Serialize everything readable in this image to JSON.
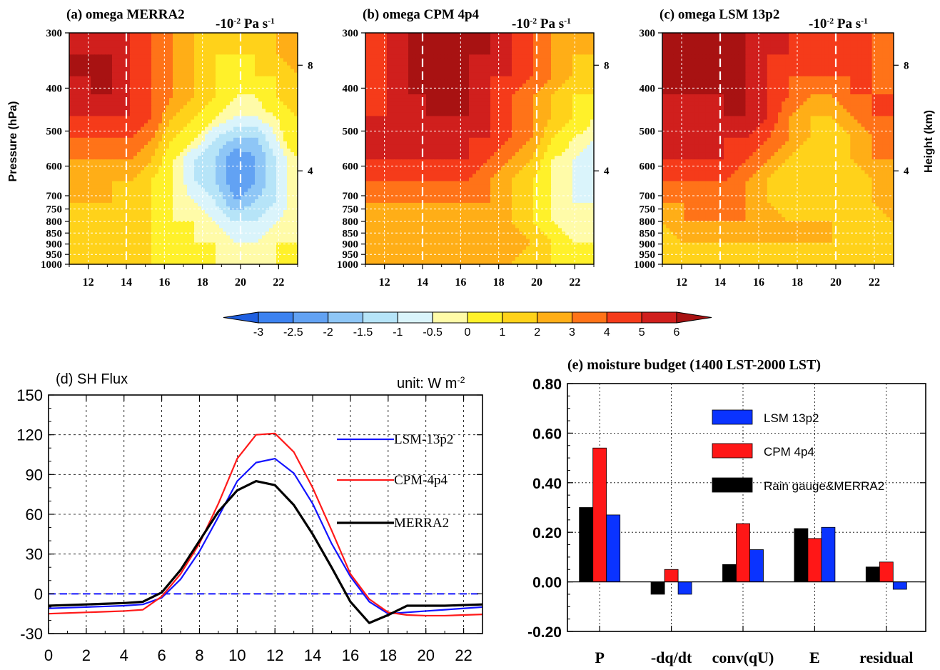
{
  "colors": {
    "contour_levels": [
      -3,
      -2.5,
      -2,
      -1.5,
      -1,
      -0.5,
      0,
      1,
      2,
      3,
      4,
      5,
      6
    ],
    "contour_palette": [
      "#1f5fe0",
      "#3c82f0",
      "#62a2f3",
      "#8ec6f6",
      "#b6e4f8",
      "#daf4fb",
      "#fffba8",
      "#fff12a",
      "#ffd21a",
      "#ffae17",
      "#ff7318",
      "#f53b1a",
      "#d01f1d",
      "#a81212"
    ],
    "line_blue": "#1414ff",
    "line_red": "#ff1a1a",
    "line_black": "#000000",
    "bar_blue": "#0a33ff",
    "bar_red": "#ff1717",
    "bar_black": "#000000"
  },
  "contour_panels": [
    {
      "id": "a",
      "title": "(a) omega   MERRA2",
      "unit_text": "-10",
      "unit_exp": "-2",
      "unit_rest": " Pa s",
      "unit_rest_exp": "-1",
      "show_left_axis": true,
      "show_right_axis": false,
      "field": [
        [
          5,
          5,
          5,
          5,
          4,
          3,
          2,
          1,
          1,
          1,
          2,
          3
        ],
        [
          6,
          6,
          6,
          5,
          4,
          3,
          2,
          1,
          1,
          1,
          2,
          3
        ],
        [
          6,
          6,
          6,
          5,
          4,
          3,
          2,
          1,
          0,
          1,
          1,
          2
        ],
        [
          5,
          6,
          6,
          5,
          4,
          3,
          2,
          1,
          0,
          0,
          1,
          2
        ],
        [
          5,
          5,
          5,
          5,
          4,
          2,
          1,
          0,
          -0.5,
          -0.5,
          0,
          1
        ],
        [
          4,
          4,
          4,
          4,
          3,
          1,
          0,
          -1,
          -1.5,
          -1.5,
          -0.5,
          1
        ],
        [
          3,
          3,
          3,
          3,
          2,
          0,
          -1,
          -1.5,
          -2.5,
          -2,
          -1,
          0
        ],
        [
          2,
          2,
          2,
          2,
          1,
          0,
          -1,
          -1.5,
          -2.5,
          -2,
          -1,
          0
        ],
        [
          2,
          2,
          2,
          1,
          1,
          0,
          -0.5,
          -1,
          -2,
          -1.5,
          -1,
          0
        ],
        [
          1,
          1,
          1,
          1,
          1,
          0,
          0,
          -0.5,
          -1,
          -1,
          -0.5,
          0
        ],
        [
          1,
          1,
          1,
          1,
          1,
          0,
          0,
          0,
          -0.5,
          -0.5,
          0,
          0
        ],
        [
          1,
          1,
          1,
          1,
          1,
          1,
          1,
          0,
          0,
          0,
          0,
          0
        ]
      ]
    },
    {
      "id": "b",
      "title": "(b)  omega   CPM 4p4",
      "unit_text": "-10",
      "unit_exp": "-2",
      "unit_rest": " Pa s",
      "unit_rest_exp": "-1",
      "show_left_axis": true,
      "show_right_axis": false,
      "field": [
        [
          4,
          5,
          6,
          6,
          6,
          6,
          6,
          5,
          4,
          3,
          3,
          2
        ],
        [
          4,
          5,
          6,
          6,
          6,
          6,
          6,
          5,
          4,
          3,
          2,
          2
        ],
        [
          4,
          5,
          6,
          6,
          6,
          6,
          5,
          5,
          4,
          3,
          2,
          1
        ],
        [
          4,
          5,
          6,
          6,
          6,
          6,
          5,
          4,
          3,
          2,
          1,
          1
        ],
        [
          5,
          5,
          5,
          6,
          6,
          6,
          5,
          4,
          3,
          2,
          1,
          0
        ],
        [
          5,
          5,
          5,
          5,
          5,
          5,
          5,
          4,
          3,
          1,
          0,
          -0.5
        ],
        [
          5,
          5,
          5,
          5,
          5,
          5,
          4,
          3,
          2,
          0,
          -0.5,
          -1
        ],
        [
          4,
          4,
          4,
          4,
          4,
          4,
          3,
          2,
          1,
          0,
          -0.5,
          -1
        ],
        [
          3,
          3,
          3,
          3,
          3,
          3,
          3,
          2,
          1,
          0,
          -0.5,
          -0.5
        ],
        [
          2,
          2,
          2,
          2,
          2,
          2,
          2,
          2,
          1,
          0,
          -0.5,
          -0.5
        ],
        [
          3,
          3,
          3,
          3,
          3,
          3,
          3,
          3,
          2,
          1,
          0,
          0
        ],
        [
          2,
          2,
          2,
          2,
          2,
          2,
          2,
          2,
          1,
          1,
          0,
          0
        ]
      ]
    },
    {
      "id": "c",
      "title": "(c) omega   LSM 13p2",
      "unit_text": "-10",
      "unit_exp": "-2",
      "unit_rest": " Pa s",
      "unit_rest_exp": "-1",
      "show_left_axis": true,
      "show_right_axis": true,
      "field": [
        [
          6,
          6,
          6,
          6,
          6,
          5,
          5,
          4,
          4,
          4,
          4,
          3
        ],
        [
          6,
          6,
          6,
          6,
          6,
          5,
          5,
          4,
          4,
          4,
          4,
          3
        ],
        [
          6,
          6,
          6,
          6,
          6,
          5,
          4,
          4,
          4,
          4,
          4,
          3
        ],
        [
          6,
          6,
          6,
          6,
          6,
          5,
          4,
          3,
          3,
          4,
          4,
          4
        ],
        [
          5,
          5,
          5,
          6,
          6,
          5,
          3,
          2,
          2,
          3,
          4,
          4
        ],
        [
          5,
          5,
          5,
          5,
          5,
          4,
          3,
          2,
          1,
          2,
          3,
          4
        ],
        [
          5,
          5,
          5,
          5,
          4,
          3,
          2,
          1,
          1,
          2,
          3,
          3
        ],
        [
          4,
          4,
          4,
          4,
          3,
          2,
          1,
          1,
          1,
          1,
          2,
          3
        ],
        [
          3,
          3,
          3,
          3,
          3,
          2,
          1,
          1,
          1,
          1,
          2,
          3
        ],
        [
          2,
          3,
          3,
          3,
          3,
          3,
          2,
          2,
          2,
          1,
          1,
          2
        ],
        [
          1,
          2,
          2,
          2,
          2,
          2,
          2,
          2,
          2,
          1,
          1,
          1
        ],
        [
          1,
          1,
          1,
          1,
          1,
          1,
          1,
          1,
          1,
          1,
          1,
          1
        ]
      ]
    }
  ],
  "contour_axes": {
    "x_ticks": [
      "12",
      "14",
      "16",
      "18",
      "20",
      "22"
    ],
    "x_tick_values": [
      12,
      14,
      16,
      18,
      20,
      22
    ],
    "x_range": [
      11,
      23
    ],
    "y_ticks": [
      "300",
      "400",
      "500",
      "600",
      "700",
      "750",
      "800",
      "850",
      "900",
      "950",
      "1000"
    ],
    "y_tick_values": [
      300,
      400,
      500,
      600,
      700,
      750,
      800,
      850,
      900,
      950,
      1000
    ],
    "y_range": [
      300,
      1000
    ],
    "y_scale": "log",
    "ylabel": "Pressure (hPa)",
    "right_ticks": [
      "8",
      "4"
    ],
    "right_tick_pressures": [
      355,
      615
    ],
    "right_label": "Height (km)",
    "dashed_vertical_at": [
      14,
      20
    ]
  },
  "colorbar": {
    "labels": [
      "-3",
      "-2.5",
      "-2",
      "-1.5",
      "-1",
      "-0.5",
      "0",
      "1",
      "2",
      "3",
      "4",
      "5",
      "6"
    ]
  },
  "chart_data": [
    {
      "type": "line",
      "title": "(d) SH Flux",
      "unit_label": "unit: W m",
      "unit_exp": "-2",
      "xlabel": "",
      "ylabel": "",
      "x": [
        0,
        1,
        2,
        3,
        4,
        5,
        6,
        7,
        8,
        9,
        10,
        11,
        12,
        13,
        14,
        15,
        16,
        17,
        18,
        19,
        20,
        21,
        22,
        23
      ],
      "xlim": [
        0,
        23
      ],
      "ylim": [
        -30,
        150
      ],
      "x_ticks": [
        "0",
        "2",
        "4",
        "6",
        "8",
        "10",
        "12",
        "14",
        "16",
        "18",
        "20",
        "22"
      ],
      "y_ticks": [
        "-30",
        "0",
        "30",
        "60",
        "90",
        "120",
        "150"
      ],
      "grid": true,
      "legend": "right",
      "zero_line": 0,
      "series": [
        {
          "name": "LSM-13p2",
          "values": [
            -11,
            -10.5,
            -10,
            -9.5,
            -9,
            -8,
            -3,
            11,
            32,
            58,
            85,
            99,
            102,
            91,
            68,
            38,
            13,
            -6,
            -15,
            -14,
            -13,
            -12,
            -11,
            -10
          ]
        },
        {
          "name": "CPM-4p4",
          "values": [
            -15,
            -14.5,
            -14,
            -13.5,
            -13,
            -12,
            -2,
            15,
            38,
            68,
            102,
            120,
            121,
            107,
            80,
            48,
            15,
            -4,
            -14,
            -16,
            -16.5,
            -16.5,
            -16,
            -15.5
          ]
        },
        {
          "name": "MERRA2",
          "values": [
            -9,
            -8.5,
            -8,
            -7.5,
            -7,
            -6,
            1,
            18,
            40,
            62,
            78,
            85,
            82,
            67,
            45,
            20,
            -6,
            -22,
            -16,
            -9,
            -9,
            -9,
            -8.5,
            -8
          ]
        }
      ]
    },
    {
      "type": "bar",
      "title": "(e) moisture budget (1400 LST-2000 LST)",
      "categories": [
        "P",
        "-dq/dt",
        "conv(qU)",
        "E",
        "residual"
      ],
      "ylim": [
        -0.2,
        0.8
      ],
      "y_ticks": [
        "-0.20",
        "0.00",
        "0.20",
        "0.40",
        "0.60",
        "0.80"
      ],
      "xlabel": "",
      "ylabel": "",
      "grid": true,
      "legend": "top-right",
      "series": [
        {
          "name": "Rain gauge&MERRA2",
          "values": [
            0.3,
            -0.05,
            0.07,
            0.215,
            0.06
          ]
        },
        {
          "name": "CPM 4p4",
          "values": [
            0.54,
            0.05,
            0.235,
            0.175,
            0.08
          ]
        },
        {
          "name": "LSM 13p2",
          "values": [
            0.27,
            -0.05,
            0.13,
            0.22,
            -0.03
          ]
        }
      ]
    }
  ]
}
